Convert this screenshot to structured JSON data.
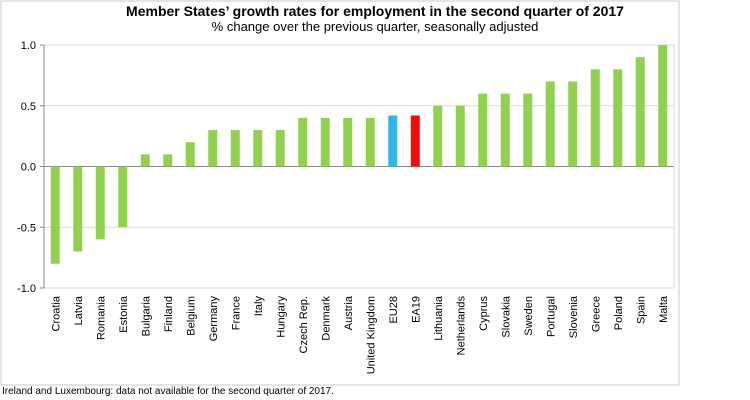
{
  "chart_data": {
    "type": "bar",
    "title": "Member States’ growth rates for employment in the second quarter of 2017",
    "subtitle": "% change over the previous quarter, seasonally adjusted",
    "categories": [
      "Croatia",
      "Latvia",
      "Romania",
      "Estonia",
      "Bulgaria",
      "Finland",
      "Belgium",
      "Germany",
      "France",
      "Italy",
      "Hungary",
      "Czech Rep.",
      "Denmark",
      "Austria",
      "United Kingdom",
      "EU28",
      "EA19",
      "Lithuania",
      "Netherlands",
      "Cyprus",
      "Slovakia",
      "Sweden",
      "Portugal",
      "Slovenia",
      "Greece",
      "Poland",
      "Spain",
      "Malta"
    ],
    "values": [
      -0.8,
      -0.7,
      -0.6,
      -0.5,
      0.1,
      0.1,
      0.2,
      0.3,
      0.3,
      0.3,
      0.3,
      0.4,
      0.4,
      0.4,
      0.4,
      0.42,
      0.42,
      0.5,
      0.5,
      0.6,
      0.6,
      0.6,
      0.7,
      0.7,
      0.8,
      0.8,
      0.9,
      1.0
    ],
    "highlight": {
      "EU28": "#33b5e6",
      "EA19": "#f20d0d"
    },
    "bar_color": "#92d050",
    "ylim": [
      -1.0,
      1.0
    ],
    "yticks": [
      "1.0",
      "0.5",
      "0.0",
      "-0.5",
      "-1.0"
    ],
    "ytick_values": [
      1.0,
      0.5,
      0.0,
      -0.5,
      -1.0
    ],
    "grid": true,
    "xlabel": "",
    "ylabel": ""
  },
  "footnote": "Ireland and Luxembourg: data not available for the second quarter of 2017."
}
